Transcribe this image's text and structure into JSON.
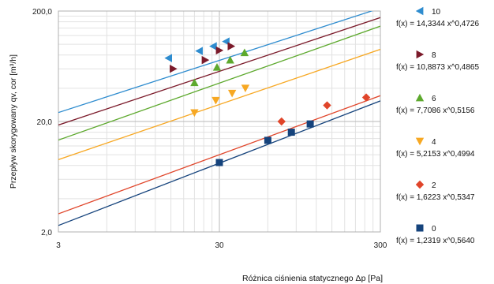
{
  "chart_data": {
    "type": "scatter",
    "xscale": "log",
    "yscale": "log",
    "xlim": [
      3,
      300
    ],
    "ylim": [
      2,
      200
    ],
    "xticks": [
      "3",
      "30",
      "300"
    ],
    "yticks": [
      "2,0",
      "20,0",
      "200,0"
    ],
    "xlabel": "Różnica ciśnienia statycznego Δp [Pa]",
    "ylabel": "Przepływ skorygowany qv, cor [m³/h]",
    "grid": true,
    "legend_position": "right",
    "series": [
      {
        "name": "10",
        "equation": "f(x) = 14,3344 x^0,4726",
        "a": 14.3344,
        "b": 0.4726,
        "color": "#2e8ccf",
        "marker": "triangle-left",
        "x": [
          14.5,
          22.5,
          27.5,
          33
        ],
        "y": [
          75,
          87,
          96,
          106
        ]
      },
      {
        "name": "8",
        "equation": "f(x) = 10,8873 x^0,4865",
        "a": 10.8873,
        "b": 0.4865,
        "color": "#7b1a2a",
        "marker": "triangle-right",
        "x": [
          15.5,
          24.5,
          30,
          35.5
        ],
        "y": [
          60,
          72,
          88,
          96
        ]
      },
      {
        "name": "6",
        "equation": "f(x) = 7,7086 x^0,5156",
        "a": 7.7086,
        "b": 0.5156,
        "color": "#5da92d",
        "marker": "triangle-up",
        "x": [
          21,
          29,
          35,
          43
        ],
        "y": [
          45,
          62,
          72,
          84
        ]
      },
      {
        "name": "4",
        "equation": "f(x) = 5,2153 x^0,4994",
        "a": 5.2153,
        "b": 0.4994,
        "color": "#f7a823",
        "marker": "triangle-down",
        "x": [
          21,
          28.5,
          36,
          43.5
        ],
        "y": [
          24,
          31,
          36,
          40
        ]
      },
      {
        "name": "2",
        "equation": "f(x) = 1,6223 x^0,5347",
        "a": 1.6223,
        "b": 0.5347,
        "color": "#e0452a",
        "marker": "diamond",
        "x": [
          73,
          140,
          245
        ],
        "y": [
          20,
          28,
          33
        ]
      },
      {
        "name": "0",
        "equation": "f(x) = 1,2319 x^0,5640",
        "a": 1.2319,
        "b": 0.564,
        "color": "#15437c",
        "marker": "square",
        "x": [
          30,
          60,
          84,
          110
        ],
        "y": [
          8.5,
          13.5,
          16,
          19
        ]
      }
    ]
  }
}
